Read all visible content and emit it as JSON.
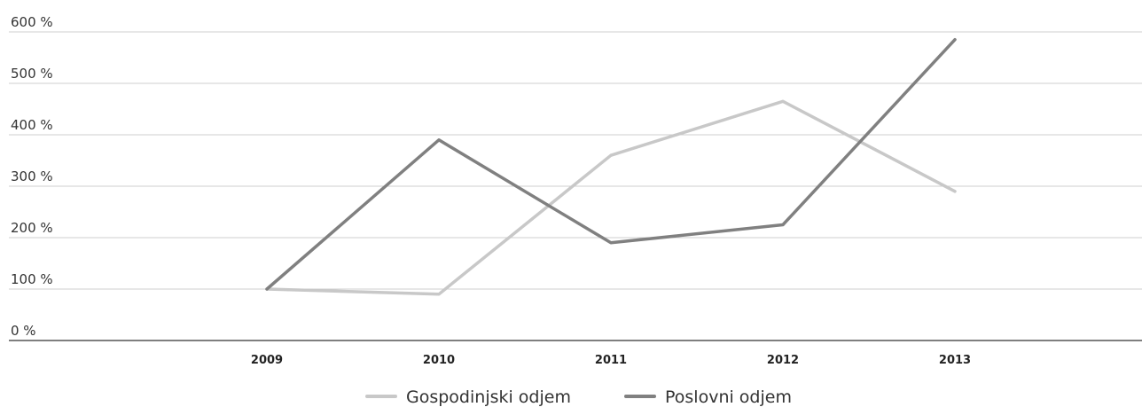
{
  "chart_data": {
    "type": "line",
    "title": "",
    "xlabel": "",
    "ylabel": "",
    "categories": [
      "2009",
      "2010",
      "2011",
      "2012",
      "2013"
    ],
    "y_tick_labels": [
      "0 %",
      "100 %",
      "200 %",
      "300 %",
      "400 %",
      "500 %",
      "600 %"
    ],
    "y_ticks": [
      0,
      100,
      200,
      300,
      400,
      500,
      600
    ],
    "ylim": [
      0,
      600
    ],
    "grid": true,
    "legend_position": "bottom-center",
    "series": [
      {
        "name": "Gospodinjski odjem",
        "color": "#c8c8c8",
        "values": [
          100,
          90,
          360,
          465,
          290
        ]
      },
      {
        "name": "Poslovni odjem",
        "color": "#808080",
        "values": [
          100,
          390,
          190,
          225,
          585
        ]
      }
    ]
  }
}
